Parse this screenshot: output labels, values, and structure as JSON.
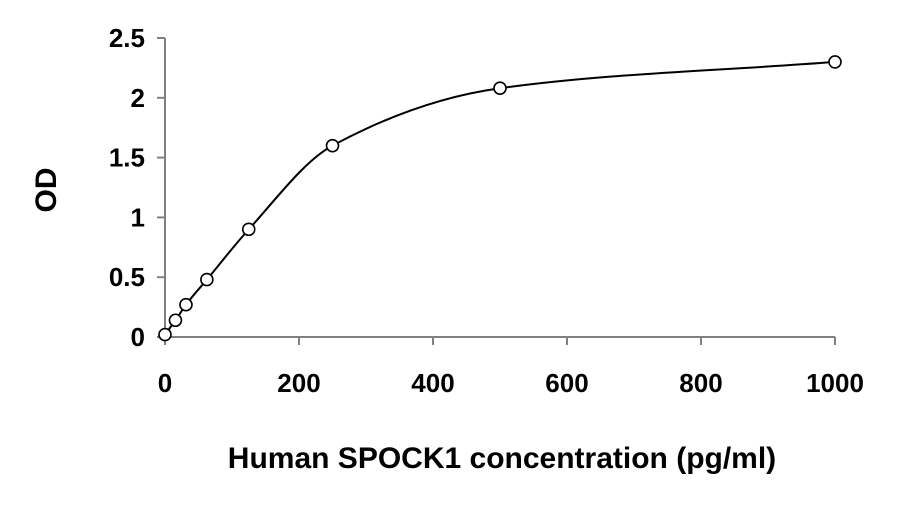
{
  "chart_data": {
    "type": "scatter",
    "xlabel": "Human SPOCK1 concentration (pg/ml)",
    "ylabel": "OD",
    "xlim": [
      0,
      1000
    ],
    "ylim": [
      0,
      2.5
    ],
    "x_ticks": [
      "0",
      "200",
      "400",
      "600",
      "800",
      "1000"
    ],
    "y_ticks": [
      "0",
      "0.5",
      "1",
      "1.5",
      "2",
      "2.5"
    ],
    "grid": false,
    "legend": "none",
    "series": [
      {
        "points": [
          {
            "x": 0,
            "y": 0.02
          },
          {
            "x": 15.6,
            "y": 0.14
          },
          {
            "x": 31.3,
            "y": 0.27
          },
          {
            "x": 62.5,
            "y": 0.48
          },
          {
            "x": 125,
            "y": 0.9
          },
          {
            "x": 250,
            "y": 1.6
          },
          {
            "x": 500,
            "y": 2.08
          },
          {
            "x": 1000,
            "y": 2.3
          }
        ],
        "fit_curve": "smooth",
        "color": "#000000"
      }
    ]
  }
}
